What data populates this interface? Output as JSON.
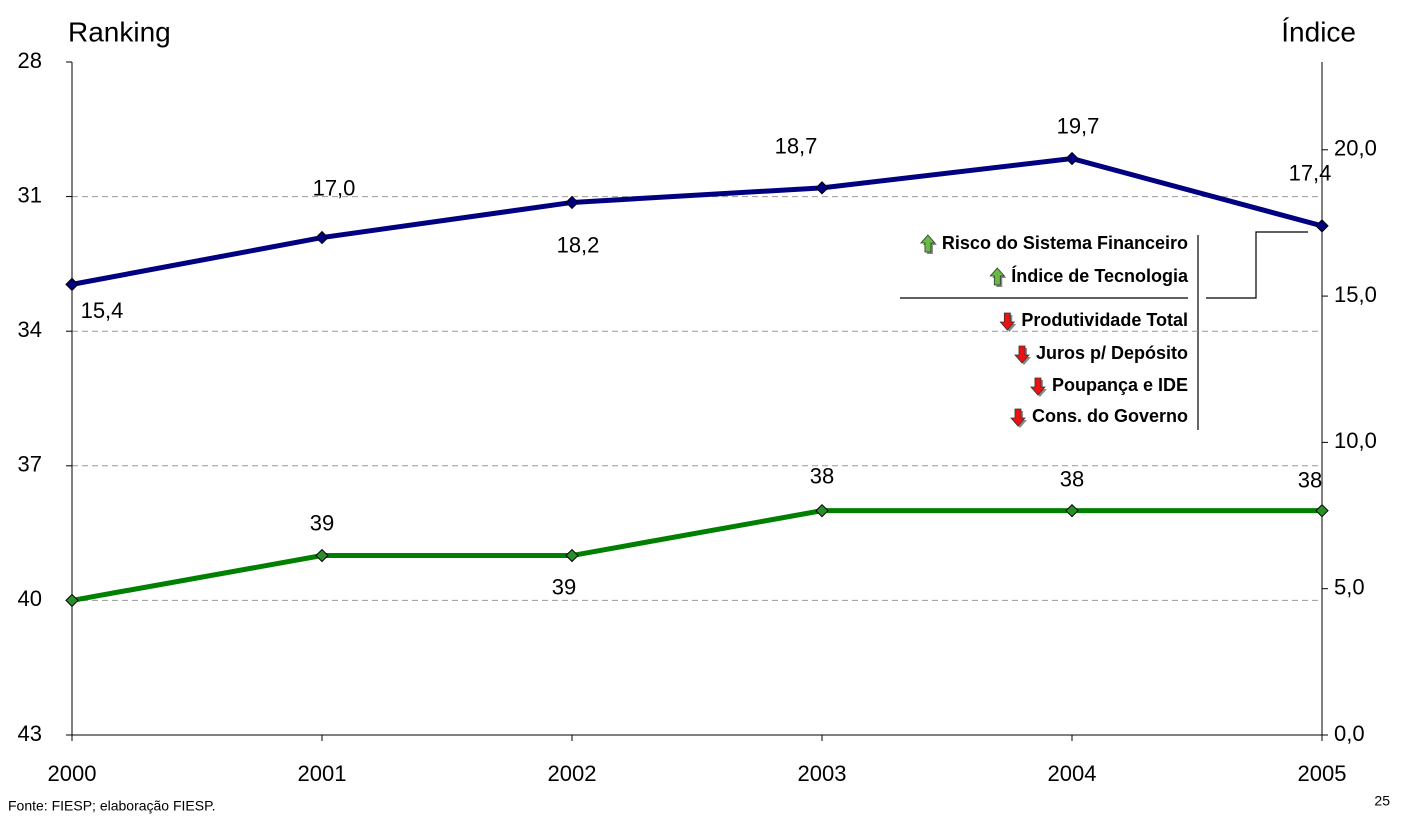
{
  "chart_data": {
    "type": "line",
    "y_axis_title": "Ranking",
    "y2_axis_title": "Índice",
    "categories": [
      "2000",
      "2001",
      "2002",
      "2003",
      "2004",
      "2005"
    ],
    "ylim": [
      43,
      28
    ],
    "yticks": [
      28,
      31,
      34,
      37,
      40,
      43
    ],
    "y2lim": [
      0,
      23
    ],
    "y2ticks": [
      {
        "value": 0,
        "label": "0,0"
      },
      {
        "value": 5,
        "label": "5,0"
      },
      {
        "value": 10,
        "label": "10,0"
      },
      {
        "value": 15,
        "label": "15,0"
      },
      {
        "value": 20,
        "label": "20,0"
      }
    ],
    "grid": true,
    "series": [
      {
        "color": "#000080",
        "axis": "y2",
        "values": [
          15.4,
          17.0,
          18.2,
          18.7,
          19.7,
          17.4
        ],
        "value_labels": [
          "15,4",
          "17,0",
          "18,2",
          "18,7",
          "19,7",
          "17,4"
        ]
      },
      {
        "color": "#008000",
        "values": [
          40,
          39,
          39,
          38,
          38,
          38
        ],
        "value_labels": [
          null,
          "39",
          "39",
          "38",
          "38",
          "38"
        ]
      }
    ],
    "annotations": {
      "up": [
        "Risco do Sistema Financeiro",
        "Índice de Tecnologia"
      ],
      "down": [
        "Produtividade Total",
        "Juros p/ Depósito",
        "Poupança e IDE",
        "Cons. do Governo"
      ]
    }
  },
  "footer": {
    "source": "Fonte: FIESP; elaboração FIESP.",
    "page_number": "25"
  }
}
